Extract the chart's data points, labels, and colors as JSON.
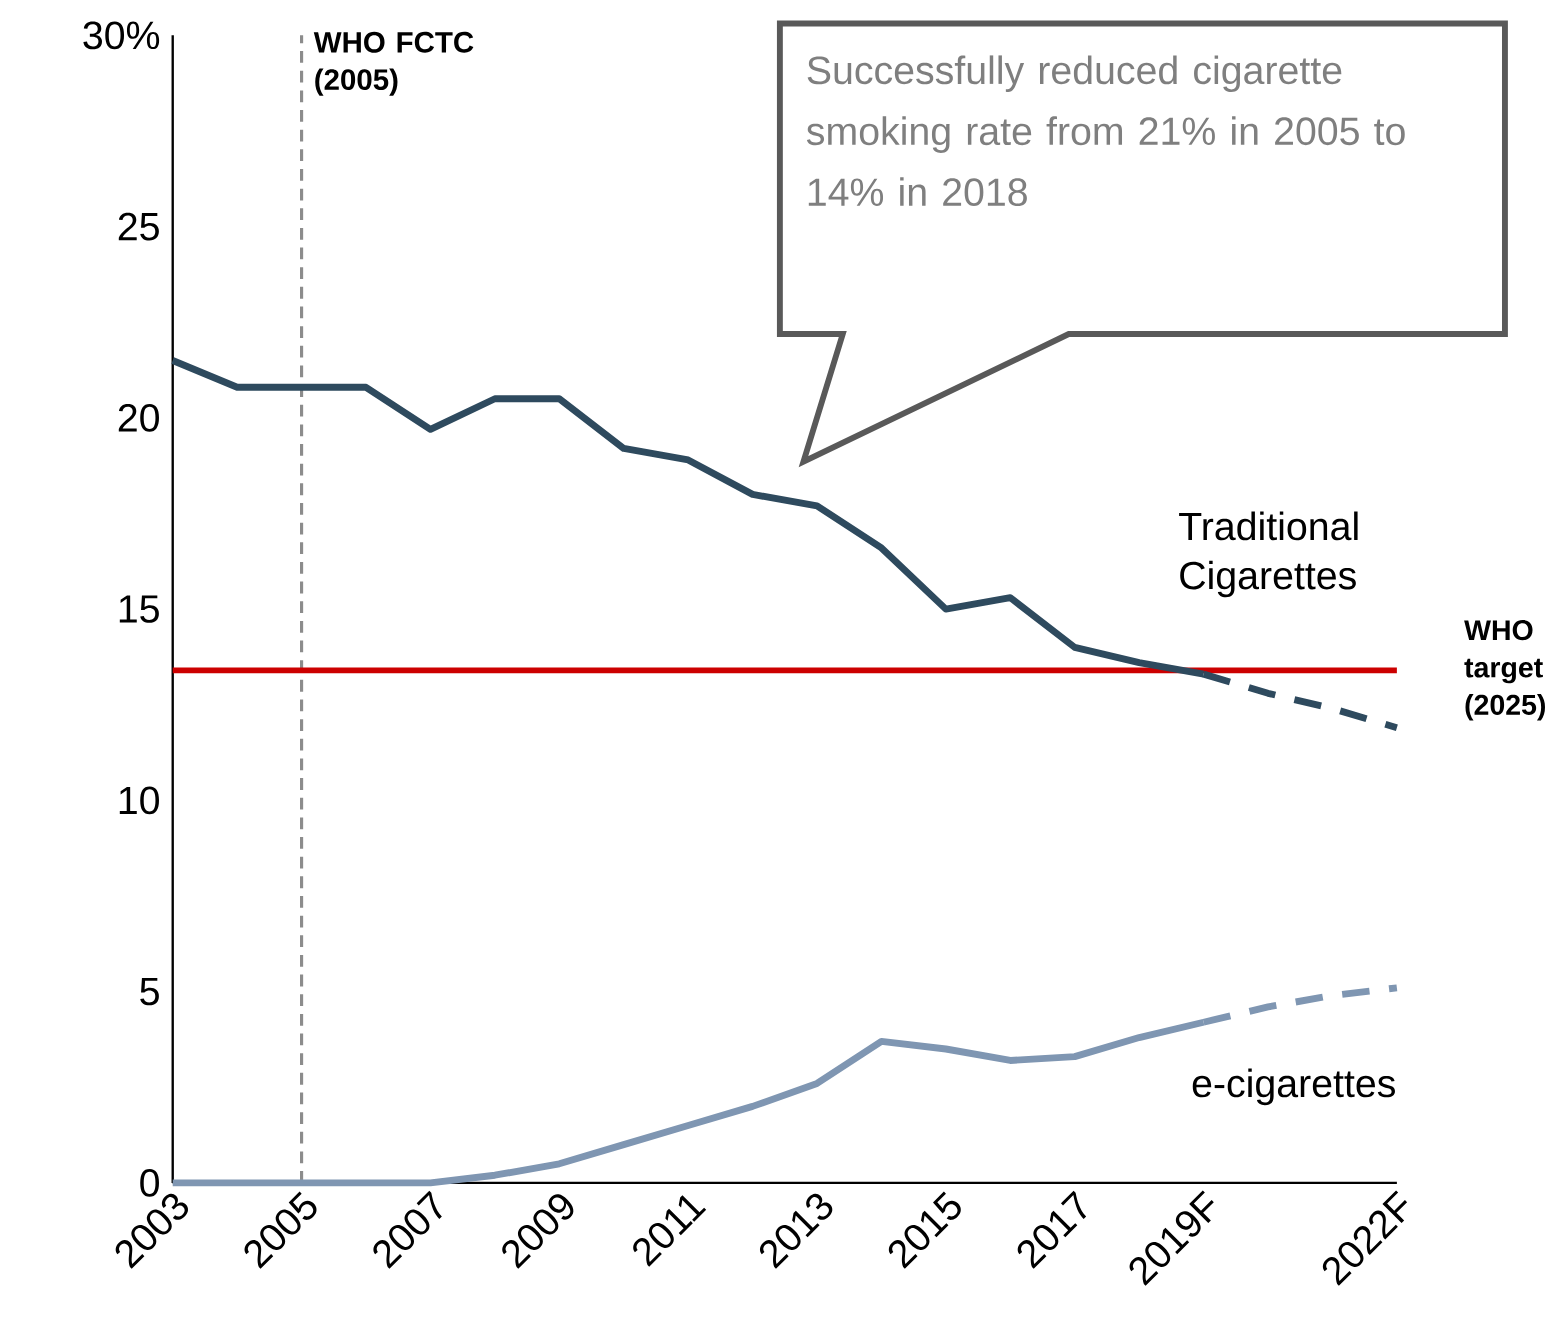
{
  "chart_data": {
    "type": "line",
    "categories": [
      "2003",
      null,
      "2005",
      null,
      "2007",
      null,
      "2009",
      null,
      "2011",
      null,
      "2013",
      null,
      "2015",
      null,
      "2017",
      null,
      "2019F",
      null,
      null,
      "2022F"
    ],
    "series": [
      {
        "name": "Traditional Cigarettes",
        "color": "#2e4a5e",
        "line_style": "solid",
        "values": [
          21.5,
          20.8,
          20.8,
          20.8,
          19.7,
          20.5,
          20.5,
          19.2,
          18.9,
          18.0,
          17.7,
          16.6,
          15.0,
          15.3,
          14.0,
          13.6,
          13.3,
          null,
          null,
          null
        ]
      },
      {
        "color": "#2e4a5e",
        "line_style": "dashed",
        "values": [
          null,
          null,
          null,
          null,
          null,
          null,
          null,
          null,
          null,
          null,
          null,
          null,
          null,
          null,
          null,
          null,
          13.3,
          12.8,
          12.4,
          11.9
        ]
      },
      {
        "name": "e-cigarettes",
        "color": "#7f96b2",
        "line_style": "solid",
        "values": [
          0,
          0,
          0,
          0,
          0,
          0.2,
          0.5,
          1.0,
          1.5,
          2.0,
          2.6,
          3.7,
          3.5,
          3.2,
          3.3,
          3.8,
          4.2,
          null,
          null,
          null
        ]
      },
      {
        "color": "#7f96b2",
        "line_style": "dashed",
        "values": [
          null,
          null,
          null,
          null,
          null,
          null,
          null,
          null,
          null,
          null,
          null,
          null,
          null,
          null,
          null,
          null,
          4.2,
          4.6,
          4.9,
          5.1
        ]
      }
    ],
    "ylim": [
      0,
      30
    ],
    "yticks": [
      0,
      5,
      10,
      15,
      20,
      25,
      {
        "value": 30,
        "label": "30%"
      }
    ],
    "ref_lines": [
      {
        "axis": "x",
        "value": "2005",
        "label": "WHO FCTC (2005)",
        "color": "#8c8c8c",
        "line_style": "dashed"
      },
      {
        "axis": "y",
        "value": 13.4,
        "label": "WHO target (2025)",
        "color": "#cc0000",
        "line_style": "solid"
      }
    ],
    "annotations": [
      "Successfully reduced cigarette smoking rate from 21% in 2005 to 14% in 2018"
    ]
  }
}
